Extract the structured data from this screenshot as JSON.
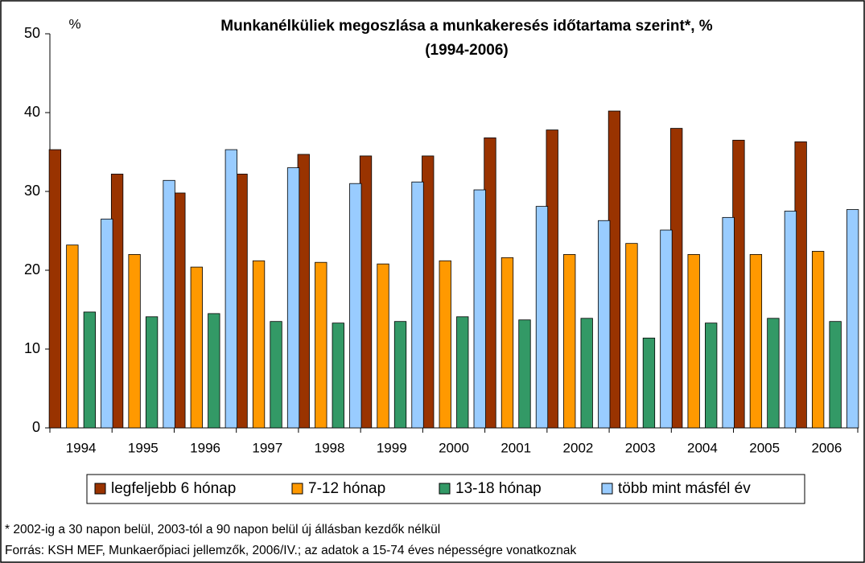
{
  "chart_data": {
    "type": "bar",
    "title": "Munkanélküliek megoszlása a munkakeresés időtartama szerint*, %",
    "subtitle": "(1994-2006)",
    "y_label": "%",
    "categories": [
      "1994",
      "1995",
      "1996",
      "1997",
      "1998",
      "1999",
      "2000",
      "2001",
      "2002",
      "2003",
      "2004",
      "2005",
      "2006"
    ],
    "series": [
      {
        "name": "legfeljebb 6 hónap",
        "color": "#993300",
        "values": [
          35.3,
          32.2,
          29.8,
          32.2,
          34.7,
          34.5,
          34.5,
          36.8,
          37.8,
          40.2,
          38.0,
          36.5,
          36.3
        ]
      },
      {
        "name": "7-12 hónap",
        "color": "#ff9900",
        "values": [
          23.2,
          22.0,
          20.4,
          21.2,
          21.0,
          20.8,
          21.2,
          21.6,
          22.0,
          23.4,
          22.0,
          22.0,
          22.4
        ]
      },
      {
        "name": "13-18 hónap",
        "color": "#339966",
        "values": [
          14.7,
          14.1,
          14.5,
          13.5,
          13.3,
          13.5,
          14.1,
          13.7,
          13.9,
          11.4,
          13.3,
          13.9,
          13.5
        ]
      },
      {
        "name": "több mint másfél év",
        "color": "#99ccff",
        "values": [
          26.5,
          31.4,
          35.3,
          33.0,
          31.0,
          31.2,
          30.2,
          28.1,
          26.3,
          25.1,
          26.7,
          27.5,
          27.7
        ]
      }
    ],
    "ylim": [
      0,
      50
    ],
    "yticks": [
      0,
      10,
      20,
      30,
      40,
      50
    ],
    "legend": "bottom",
    "notes": [
      "* 2002-ig a 30 napon belül, 2003-tól a 90 napon belül új állásban kezdők nélkül",
      "Forrás: KSH MEF, Munkaerőpiaci jellemzők, 2006/IV.; az adatok a 15-74 éves népességre vonatkoznak"
    ]
  }
}
